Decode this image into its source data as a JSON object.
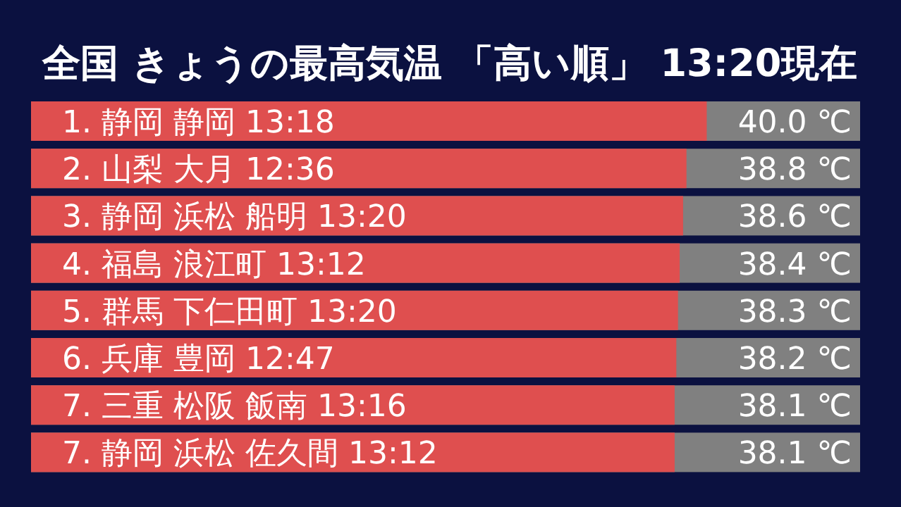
{
  "chart_data": {
    "type": "bar",
    "orientation": "horizontal",
    "title": "全国 きょうの最高気温 「高い順」 13:20現在",
    "categories": [
      "1. 静岡 静岡 13:18",
      "2. 山梨 大月 12:36",
      "3. 静岡 浜松 船明 13:20",
      "4. 福島 浪江町 13:12",
      "5. 群馬 下仁田町 13:20",
      "6. 兵庫 豊岡 12:47",
      "7. 三重 松阪 飯南 13:16",
      "7. 静岡 浜松 佐久間 13:12"
    ],
    "values": [
      40.0,
      38.8,
      38.6,
      38.4,
      38.3,
      38.2,
      38.1,
      38.1
    ],
    "value_labels": [
      "40.0 ℃",
      "38.8 ℃",
      "38.6 ℃",
      "38.4 ℃",
      "38.3 ℃",
      "38.2 ℃",
      "38.1 ℃",
      "38.1 ℃"
    ],
    "color": "#df4f4f"
  }
}
